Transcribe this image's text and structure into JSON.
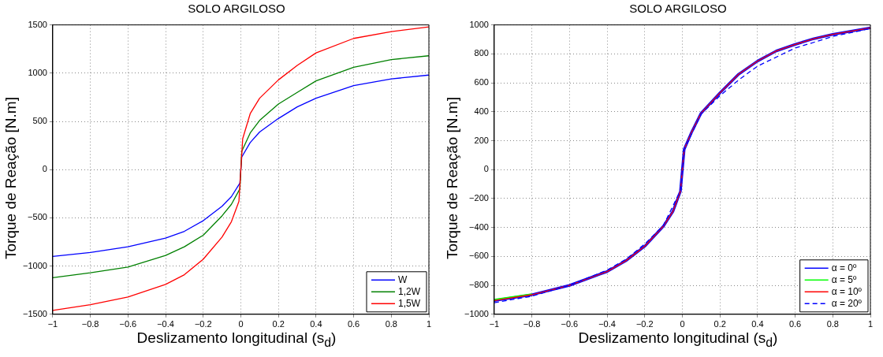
{
  "chart_data": [
    {
      "type": "line",
      "title": "SOLO ARGILOSO",
      "xlabel": "Deslizamento longitudinal (s$_{d}$)",
      "ylabel": "Torque de Reação [N.m]",
      "xlim": [
        -1,
        1
      ],
      "xticks": [
        -1,
        -0.8,
        -0.6,
        -0.4,
        -0.2,
        0,
        0.2,
        0.4,
        0.6,
        0.8,
        1
      ],
      "ylim": [
        -1500,
        1500
      ],
      "yticks": [
        -1500,
        -1000,
        -500,
        0,
        500,
        1000,
        1500
      ],
      "grid": true,
      "legend": "bottom right",
      "marker": "none",
      "series": [
        {
          "name": "W",
          "color": "#0000ff",
          "x": [
            -1,
            -0.8,
            -0.6,
            -0.4,
            -0.3,
            -0.2,
            -0.1,
            -0.05,
            -0.005,
            0.005,
            0.05,
            0.1,
            0.2,
            0.3,
            0.4,
            0.6,
            0.8,
            1
          ],
          "values": [
            -900,
            -860,
            -800,
            -710,
            -640,
            -530,
            -380,
            -280,
            -140,
            130,
            280,
            390,
            530,
            650,
            740,
            870,
            940,
            980
          ]
        },
        {
          "name": "1,2W",
          "color": "#008000",
          "x": [
            -1,
            -0.8,
            -0.6,
            -0.4,
            -0.3,
            -0.2,
            -0.1,
            -0.05,
            -0.005,
            0.005,
            0.05,
            0.1,
            0.2,
            0.3,
            0.4,
            0.6,
            0.8,
            1
          ],
          "values": [
            -1120,
            -1070,
            -1010,
            -890,
            -800,
            -680,
            -480,
            -360,
            -200,
            190,
            380,
            510,
            680,
            800,
            920,
            1060,
            1140,
            1180
          ]
        },
        {
          "name": "1,5W",
          "color": "#ff0000",
          "x": [
            -1,
            -0.8,
            -0.6,
            -0.4,
            -0.3,
            -0.2,
            -0.1,
            -0.05,
            -0.01,
            0.01,
            0.05,
            0.1,
            0.2,
            0.3,
            0.4,
            0.6,
            0.8,
            1
          ],
          "values": [
            -1460,
            -1400,
            -1320,
            -1190,
            -1090,
            -930,
            -700,
            -540,
            -330,
            320,
            580,
            740,
            930,
            1080,
            1210,
            1360,
            1430,
            1480
          ]
        }
      ]
    },
    {
      "type": "line",
      "title": "SOLO ARGILOSO",
      "xlabel": "Deslizamento longitudinal (s$_{d}$)",
      "ylabel": "Torque de Reação [N.m]",
      "xlim": [
        -1,
        1
      ],
      "xticks": [
        -1,
        -0.8,
        -0.6,
        -0.4,
        -0.2,
        0,
        0.2,
        0.4,
        0.6,
        0.8,
        1
      ],
      "ylim": [
        -1000,
        1000
      ],
      "yticks": [
        -1000,
        -800,
        -600,
        -400,
        -200,
        0,
        200,
        400,
        600,
        800,
        1000
      ],
      "grid": true,
      "legend": "bottom right",
      "marker": "none",
      "series": [
        {
          "name": "α = 0º",
          "color": "#0000ff",
          "line_style": "solid",
          "x": [
            -1,
            -0.8,
            -0.6,
            -0.4,
            -0.3,
            -0.2,
            -0.1,
            -0.05,
            -0.01,
            0.01,
            0.05,
            0.1,
            0.2,
            0.3,
            0.4,
            0.5,
            0.6,
            0.7,
            0.8,
            1
          ],
          "values": [
            -905,
            -865,
            -800,
            -705,
            -630,
            -530,
            -390,
            -290,
            -150,
            140,
            260,
            390,
            530,
            660,
            750,
            820,
            865,
            905,
            935,
            980
          ]
        },
        {
          "name": "α = 5º",
          "color": "#00ff00",
          "line_style": "solid",
          "x": [
            -1,
            -0.8
          ],
          "values": [
            -900,
            -862
          ]
        },
        {
          "name": "α = 10º",
          "color": "#ff0000",
          "line_style": "solid",
          "x": [
            -1,
            -0.8,
            -0.6,
            -0.4,
            -0.3,
            -0.2,
            -0.1,
            -0.05,
            -0.01,
            0.01,
            0.05,
            0.1,
            0.2,
            0.3,
            0.4,
            0.5,
            0.6,
            0.7,
            0.8,
            1
          ],
          "values": [
            -905,
            -865,
            -800,
            -705,
            -630,
            -530,
            -390,
            -290,
            -150,
            140,
            260,
            390,
            530,
            660,
            750,
            820,
            865,
            905,
            935,
            980
          ]
        },
        {
          "name": "α = 20º",
          "color": "#0000ff",
          "line_style": "dashed",
          "x": [
            -1,
            -0.8,
            -0.6,
            -0.4,
            -0.3,
            -0.2,
            -0.1,
            -0.01,
            0.01,
            0.1,
            0.2,
            0.3,
            0.4,
            0.6,
            0.8,
            1
          ],
          "values": [
            -920,
            -875,
            -800,
            -695,
            -620,
            -515,
            -385,
            -145,
            140,
            385,
            510,
            620,
            715,
            840,
            920,
            975
          ]
        }
      ]
    }
  ]
}
